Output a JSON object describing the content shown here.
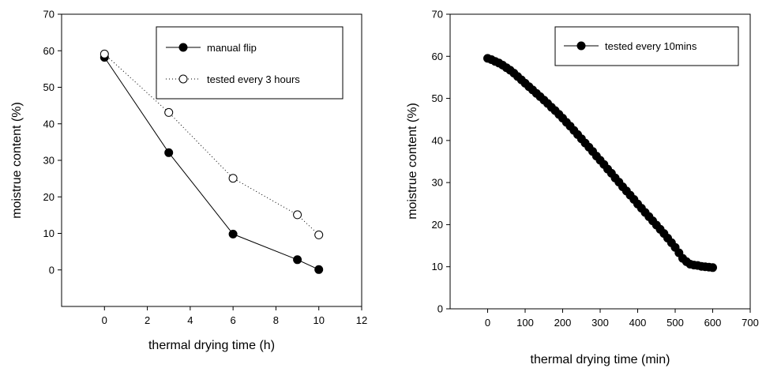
{
  "chart_data": [
    {
      "type": "line",
      "xlabel": "thermal drying time (h)",
      "ylabel": "moistrue content (%)",
      "xlim": [
        -2,
        12
      ],
      "ylim": [
        -10,
        70
      ],
      "xticks": [
        0,
        2,
        4,
        6,
        8,
        10,
        12
      ],
      "yticks": [
        0,
        10,
        20,
        30,
        40,
        50,
        60,
        70
      ],
      "legend_position": "top-right",
      "series": [
        {
          "name": "manual flip",
          "marker": "filled-circle",
          "line": "solid",
          "x": [
            0,
            3,
            6,
            9,
            10
          ],
          "y": [
            58.2,
            32.1,
            9.8,
            2.8,
            0.1
          ]
        },
        {
          "name": "tested every 3 hours",
          "marker": "open-circle",
          "line": "dotted",
          "x": [
            0,
            3,
            6,
            9,
            10
          ],
          "y": [
            59.1,
            43.1,
            25.1,
            15.1,
            9.6
          ]
        }
      ]
    },
    {
      "type": "line",
      "xlabel": "thermal drying time (min)",
      "ylabel": "moistrue content (%)",
      "xlim": [
        -100,
        700
      ],
      "ylim": [
        0,
        70
      ],
      "xticks": [
        0,
        100,
        200,
        300,
        400,
        500,
        600,
        700
      ],
      "yticks": [
        0,
        10,
        20,
        30,
        40,
        50,
        60,
        70
      ],
      "legend_position": "top-right",
      "series": [
        {
          "name": "tested every 10mins",
          "marker": "filled-circle",
          "line": "solid",
          "x": [
            0,
            10,
            20,
            30,
            40,
            50,
            60,
            70,
            80,
            90,
            100,
            110,
            120,
            130,
            140,
            150,
            160,
            170,
            180,
            190,
            200,
            210,
            220,
            230,
            240,
            250,
            260,
            270,
            280,
            290,
            300,
            310,
            320,
            330,
            340,
            350,
            360,
            370,
            380,
            390,
            400,
            410,
            420,
            430,
            440,
            450,
            460,
            470,
            480,
            490,
            500,
            510,
            520,
            530,
            540,
            550,
            560,
            570,
            580,
            590,
            600
          ],
          "y": [
            59.5,
            59.2,
            58.8,
            58.4,
            57.9,
            57.3,
            56.7,
            56.0,
            55.2,
            54.4,
            53.6,
            52.8,
            52.0,
            51.2,
            50.4,
            49.6,
            48.8,
            47.9,
            47.1,
            46.2,
            45.3,
            44.3,
            43.4,
            42.4,
            41.4,
            40.4,
            39.4,
            38.4,
            37.4,
            36.3,
            35.3,
            34.3,
            33.2,
            32.2,
            31.1,
            30.1,
            29.0,
            28.0,
            27.0,
            26.0,
            24.9,
            23.9,
            22.9,
            21.9,
            20.9,
            19.9,
            18.9,
            17.9,
            16.8,
            15.7,
            14.6,
            13.3,
            12.0,
            11.2,
            10.6,
            10.4,
            10.3,
            10.1,
            10.0,
            9.9,
            9.8
          ]
        }
      ]
    }
  ]
}
